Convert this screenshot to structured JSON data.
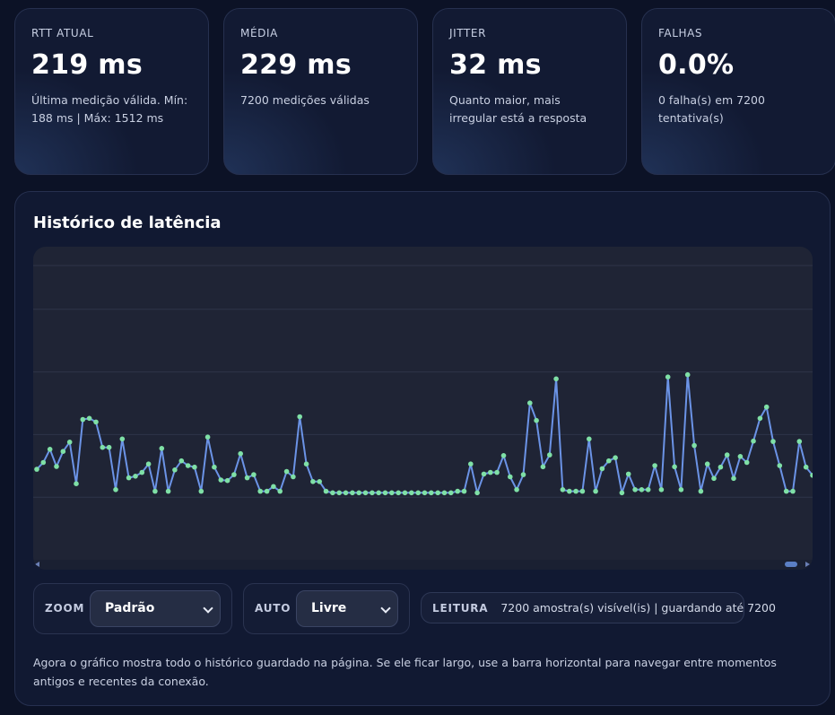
{
  "stats": [
    {
      "label": "RTT ATUAL",
      "value": "219 ms",
      "desc": "Última medição válida. Mín: 188 ms | Máx: 1512 ms"
    },
    {
      "label": "MÉDIA",
      "value": "229 ms",
      "desc": "7200 medições válidas"
    },
    {
      "label": "JITTER",
      "value": "32 ms",
      "desc": "Quanto maior, mais irregular está a resposta"
    },
    {
      "label": "FALHAS",
      "value": "0.0%",
      "desc": "0 falha(s) em 7200 tentativa(s)"
    }
  ],
  "panel": {
    "title": "Histórico de latência",
    "footnote": "Agora o gráfico mostra todo o histórico guardado na página. Se ele ficar largo, use a barra horizontal para navegar entre momentos antigos e recentes da conexão."
  },
  "controls": {
    "zoom_label": "ZOOM",
    "zoom_value": "Padrão",
    "auto_label": "AUTO",
    "auto_value": "Livre",
    "leitura_label": "LEITURA",
    "leitura_value": "7200 amostra(s) visível(is) | guardando até 7200"
  },
  "colors": {
    "line": "#6b93e6",
    "point": "#7fe0a6",
    "grid": "#2f3549",
    "background": "#0c1226"
  },
  "chart_data": {
    "type": "line",
    "title": "Histórico de latência",
    "xlabel": "",
    "ylabel": "",
    "grid": true,
    "ylim": [
      0,
      1
    ],
    "y": [
      0.289,
      0.311,
      0.353,
      0.298,
      0.346,
      0.376,
      0.243,
      0.448,
      0.452,
      0.44,
      0.359,
      0.359,
      0.224,
      0.386,
      0.262,
      0.267,
      0.279,
      0.306,
      0.219,
      0.356,
      0.219,
      0.287,
      0.316,
      0.301,
      0.296,
      0.219,
      0.392,
      0.296,
      0.255,
      0.253,
      0.272,
      0.339,
      0.262,
      0.272,
      0.219,
      0.219,
      0.234,
      0.219,
      0.282,
      0.265,
      0.457,
      0.306,
      0.25,
      0.25,
      0.219,
      0.214,
      0.214,
      0.214,
      0.214,
      0.214,
      0.214,
      0.214,
      0.214,
      0.214,
      0.214,
      0.214,
      0.214,
      0.214,
      0.214,
      0.214,
      0.214,
      0.214,
      0.214,
      0.214,
      0.219,
      0.219,
      0.306,
      0.214,
      0.274,
      0.279,
      0.279,
      0.333,
      0.265,
      0.224,
      0.272,
      0.501,
      0.445,
      0.297,
      0.335,
      0.578,
      0.224,
      0.219,
      0.219,
      0.219,
      0.386,
      0.219,
      0.291,
      0.316,
      0.326,
      0.214,
      0.274,
      0.224,
      0.224,
      0.224,
      0.301,
      0.224,
      0.584,
      0.297,
      0.224,
      0.591,
      0.365,
      0.219,
      0.306,
      0.26,
      0.296,
      0.335,
      0.26,
      0.33,
      0.311,
      0.379,
      0.452,
      0.488,
      0.378,
      0.301,
      0.219,
      0.219,
      0.378,
      0.296,
      0.27
    ]
  }
}
